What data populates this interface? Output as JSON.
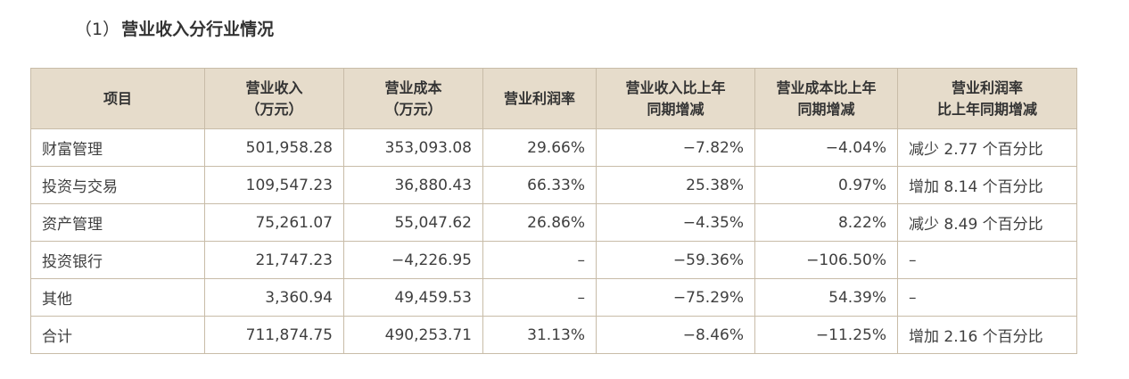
{
  "section": {
    "number": "（1）",
    "title": "营业收入分行业情况"
  },
  "table": {
    "headers": [
      [
        "项目"
      ],
      [
        "营业收入",
        "（万元）"
      ],
      [
        "营业成本",
        "（万元）"
      ],
      [
        "营业利润率"
      ],
      [
        "营业收入比上年",
        "同期增减"
      ],
      [
        "营业成本比上年",
        "同期增减"
      ],
      [
        "营业利润率",
        "比上年同期增减"
      ]
    ],
    "rows": [
      [
        "财富管理",
        "501,958.28",
        "353,093.08",
        "29.66%",
        "−7.82%",
        "−4.04%",
        "减少 2.77 个百分比"
      ],
      [
        "投资与交易",
        "109,547.23",
        "36,880.43",
        "66.33%",
        "25.38%",
        "0.97%",
        "增加 8.14 个百分比"
      ],
      [
        "资产管理",
        "75,261.07",
        "55,047.62",
        "26.86%",
        "−4.35%",
        "8.22%",
        "减少 8.49 个百分比"
      ],
      [
        "投资银行",
        "21,747.23",
        "−4,226.95",
        "–",
        "−59.36%",
        "−106.50%",
        "–"
      ],
      [
        "其他",
        "3,360.94",
        "49,459.53",
        "–",
        "−75.29%",
        "54.39%",
        "–"
      ],
      [
        "合计",
        "711,874.75",
        "490,253.71",
        "31.13%",
        "−8.46%",
        "−11.25%",
        "增加 2.16 个百分比"
      ]
    ]
  }
}
